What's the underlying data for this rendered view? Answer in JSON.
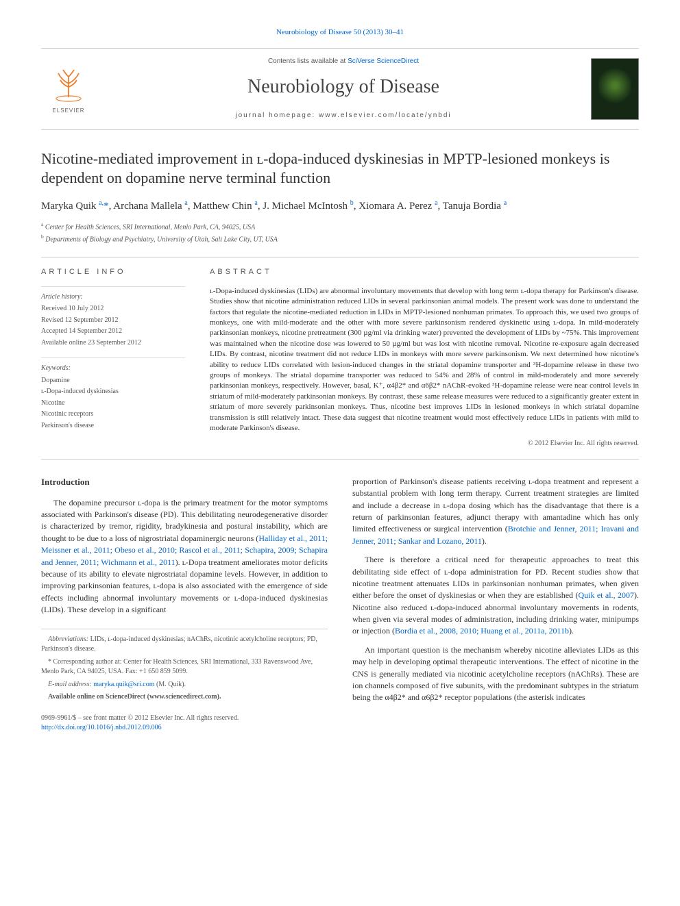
{
  "header": {
    "citation_link": "Neurobiology of Disease 50 (2013) 30–41",
    "contents_prefix": "Contents lists available at ",
    "contents_link": "SciVerse ScienceDirect",
    "journal_name": "Neurobiology of Disease",
    "homepage_label": "journal homepage: www.elsevier.com/locate/ynbdi",
    "publisher_logo_alt": "ELSEVIER"
  },
  "article": {
    "title": "Nicotine-mediated improvement in ʟ-dopa-induced dyskinesias in MPTP-lesioned monkeys is dependent on dopamine nerve terminal function",
    "authors_html": "Maryka Quik <sup>a,</sup><a href=\"#\">*</a>, Archana Mallela <sup>a</sup>, Matthew Chin <sup>a</sup>, J. Michael McIntosh <sup>b</sup>, Xiomara A. Perez <sup>a</sup>, Tanuja Bordia <sup>a</sup>",
    "affiliations": [
      {
        "marker": "a",
        "text": "Center for Health Sciences, SRI International, Menlo Park, CA, 94025, USA"
      },
      {
        "marker": "b",
        "text": "Departments of Biology and Psychiatry, University of Utah, Salt Lake City, UT, USA"
      }
    ]
  },
  "info": {
    "heading": "ARTICLE INFO",
    "history_label": "Article history:",
    "history": [
      "Received 10 July 2012",
      "Revised 12 September 2012",
      "Accepted 14 September 2012",
      "Available online 23 September 2012"
    ],
    "keywords_label": "Keywords:",
    "keywords": [
      "Dopamine",
      "ʟ-Dopa-induced dyskinesias",
      "Nicotine",
      "Nicotinic receptors",
      "Parkinson's disease"
    ]
  },
  "abstract": {
    "heading": "ABSTRACT",
    "text": "ʟ-Dopa-induced dyskinesias (LIDs) are abnormal involuntary movements that develop with long term ʟ-dopa therapy for Parkinson's disease. Studies show that nicotine administration reduced LIDs in several parkinsonian animal models. The present work was done to understand the factors that regulate the nicotine-mediated reduction in LIDs in MPTP-lesioned nonhuman primates. To approach this, we used two groups of monkeys, one with mild-moderate and the other with more severe parkinsonism rendered dyskinetic using ʟ-dopa. In mild-moderately parkinsonian monkeys, nicotine pretreatment (300 µg/ml via drinking water) prevented the development of LIDs by ~75%. This improvement was maintained when the nicotine dose was lowered to 50 µg/ml but was lost with nicotine removal. Nicotine re-exposure again decreased LIDs. By contrast, nicotine treatment did not reduce LIDs in monkeys with more severe parkinsonism. We next determined how nicotine's ability to reduce LIDs correlated with lesion-induced changes in the striatal dopamine transporter and ³H-dopamine release in these two groups of monkeys. The striatal dopamine transporter was reduced to 54% and 28% of control in mild-moderately and more severely parkinsonian monkeys, respectively. However, basal, K⁺, α4β2* and α6β2* nAChR-evoked ³H-dopamine release were near control levels in striatum of mild-moderately parkinsonian monkeys. By contrast, these same release measures were reduced to a significantly greater extent in striatum of more severely parkinsonian monkeys. Thus, nicotine best improves LIDs in lesioned monkeys in which striatal dopamine transmission is still relatively intact. These data suggest that nicotine treatment would most effectively reduce LIDs in patients with mild to moderate Parkinson's disease.",
    "copyright": "© 2012 Elsevier Inc. All rights reserved."
  },
  "body": {
    "intro_heading": "Introduction",
    "col1_p1_pre": "The dopamine precursor ʟ-dopa is the primary treatment for the motor symptoms associated with Parkinson's disease (PD). This debilitating neurodegenerative disorder is characterized by tremor, rigidity, bradykinesia and postural instability, which are thought to be due to a loss of nigrostriatal dopaminergic neurons (",
    "col1_p1_link": "Halliday et al., 2011; Meissner et al., 2011; Obeso et al., 2010; Rascol et al., 2011; Schapira, 2009; Schapira and Jenner, 2011; Wichmann et al., 2011",
    "col1_p1_post": "). ʟ-Dopa treatment ameliorates motor deficits because of its ability to elevate nigrostriatal dopamine levels. However, in addition to improving parkinsonian features, ʟ-dopa is also associated with the emergence of side effects including abnormal involuntary movements or ʟ-dopa-induced dyskinesias (LIDs). These develop in a significant",
    "col2_p1_pre": "proportion of Parkinson's disease patients receiving ʟ-dopa treatment and represent a substantial problem with long term therapy. Current treatment strategies are limited and include a decrease in ʟ-dopa dosing which has the disadvantage that there is a return of parkinsonian features, adjunct therapy with amantadine which has only limited effectiveness or surgical intervention (",
    "col2_p1_link": "Brotchie and Jenner, 2011; Iravani and Jenner, 2011; Sankar and Lozano, 2011",
    "col2_p1_post": ").",
    "col2_p2_pre": "There is therefore a critical need for therapeutic approaches to treat this debilitating side effect of ʟ-dopa administration for PD. Recent studies show that nicotine treatment attenuates LIDs in parkinsonian nonhuman primates, when given either before the onset of dyskinesias or when they are established (",
    "col2_p2_link1": "Quik et al., 2007",
    "col2_p2_mid": "). Nicotine also reduced ʟ-dopa-induced abnormal involuntary movements in rodents, when given via several modes of administration, including drinking water, minipumps or injection (",
    "col2_p2_link2": "Bordia et al., 2008, 2010; Huang et al., 2011a, 2011b",
    "col2_p2_post": ").",
    "col2_p3": "An important question is the mechanism whereby nicotine alleviates LIDs as this may help in developing optimal therapeutic interventions. The effect of nicotine in the CNS is generally mediated via nicotinic acetylcholine receptors (nAChRs). These are ion channels composed of five subunits, with the predominant subtypes in the striatum being the α4β2* and α6β2* receptor populations (the asterisk indicates"
  },
  "footnotes": {
    "abbrev_label": "Abbreviations:",
    "abbrev_text": " LIDs, ʟ-dopa-induced dyskinesias; nAChRs, nicotinic acetylcholine receptors; PD, Parkinson's disease.",
    "corr_marker": "*",
    "corr_text": " Corresponding author at: Center for Health Sciences, SRI International, 333 Ravenswood Ave, Menlo Park, CA 94025, USA. Fax: +1 650 859 5099.",
    "email_label": "E-mail address: ",
    "email_link": "maryka.quik@sri.com",
    "email_suffix": " (M. Quik).",
    "avail_label": "Available online on ScienceDirect (www.sciencedirect.com)."
  },
  "footer": {
    "issn": "0969-9961/$ – see front matter © 2012 Elsevier Inc. All rights reserved.",
    "doi": "http://dx.doi.org/10.1016/j.nbd.2012.09.006"
  },
  "colors": {
    "link": "#0066cc",
    "text": "#333333",
    "muted": "#555555",
    "rule": "#cccccc",
    "elsevier_orange": "#ee7d2c"
  }
}
